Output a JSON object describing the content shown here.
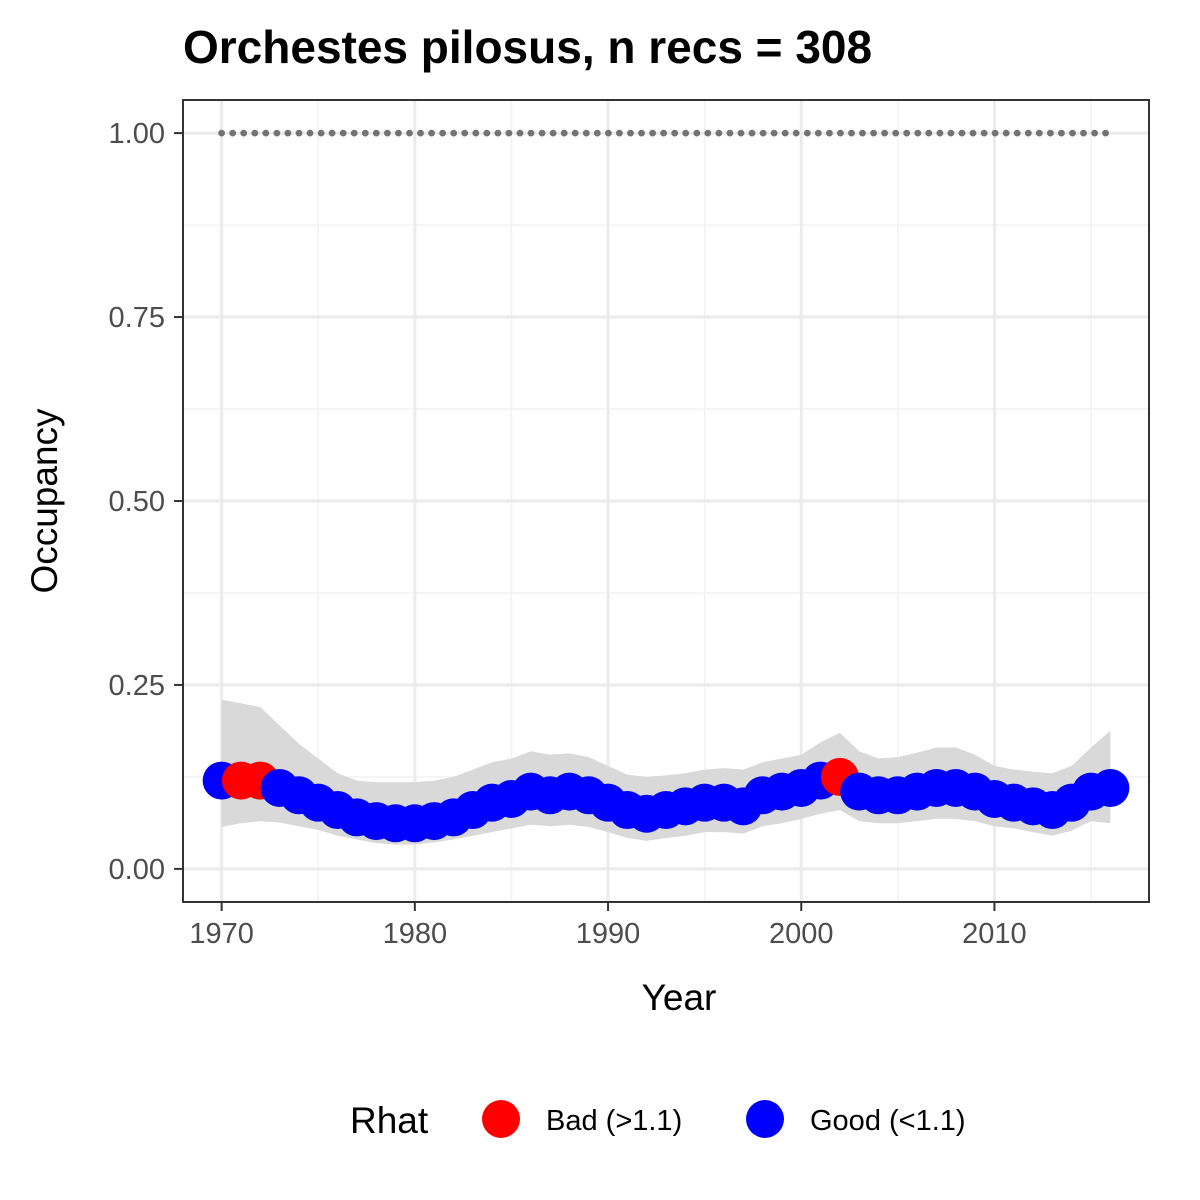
{
  "chart_data": {
    "type": "line",
    "title": "Orchestes pilosus, n recs = 308",
    "xlabel": "Year",
    "ylabel": "Occupancy",
    "xlim": [
      1968,
      2018
    ],
    "ylim": [
      -0.045,
      1.045
    ],
    "x_ticks": [
      1970,
      1980,
      1990,
      2000,
      2010
    ],
    "x_tick_labels": [
      "1970",
      "1980",
      "1990",
      "2000",
      "2010"
    ],
    "y_ticks": [
      0,
      0.25,
      0.5,
      0.75,
      1
    ],
    "y_tick_labels": [
      "0.00",
      "0.25",
      "0.50",
      "0.75",
      "1.00"
    ],
    "grid": true,
    "legend": {
      "title": "Rhat",
      "position": "bottom",
      "items": [
        {
          "label": "Bad (>1.1)",
          "color": "#ff0000"
        },
        {
          "label": "Good (<1.1)",
          "color": "#0000ff"
        }
      ]
    },
    "colors": {
      "bad": "#ff0000",
      "good": "#0000ff",
      "ribbon": "#d9d9d9",
      "reference": "#737373"
    },
    "reference_line": {
      "y": 1.0,
      "style": "dotted"
    },
    "years": [
      1970,
      1971,
      1972,
      1973,
      1974,
      1975,
      1976,
      1977,
      1978,
      1979,
      1980,
      1981,
      1982,
      1983,
      1984,
      1985,
      1986,
      1987,
      1988,
      1989,
      1990,
      1991,
      1992,
      1993,
      1994,
      1995,
      1996,
      1997,
      1998,
      1999,
      2000,
      2001,
      2002,
      2003,
      2004,
      2005,
      2006,
      2007,
      2008,
      2009,
      2010,
      2011,
      2012,
      2013,
      2014,
      2015,
      2016
    ],
    "occupancy": [
      0.12,
      0.12,
      0.12,
      0.11,
      0.1,
      0.09,
      0.08,
      0.07,
      0.065,
      0.062,
      0.062,
      0.065,
      0.07,
      0.08,
      0.09,
      0.095,
      0.105,
      0.1,
      0.105,
      0.1,
      0.09,
      0.08,
      0.075,
      0.08,
      0.085,
      0.09,
      0.09,
      0.085,
      0.1,
      0.105,
      0.11,
      0.12,
      0.125,
      0.105,
      0.1,
      0.1,
      0.105,
      0.11,
      0.11,
      0.105,
      0.095,
      0.09,
      0.085,
      0.08,
      0.09,
      0.105,
      0.11
    ],
    "lower": [
      0.057,
      0.062,
      0.065,
      0.063,
      0.058,
      0.053,
      0.045,
      0.04,
      0.035,
      0.033,
      0.033,
      0.036,
      0.04,
      0.045,
      0.05,
      0.055,
      0.06,
      0.058,
      0.06,
      0.057,
      0.05,
      0.042,
      0.038,
      0.042,
      0.045,
      0.05,
      0.05,
      0.048,
      0.058,
      0.062,
      0.068,
      0.075,
      0.08,
      0.065,
      0.062,
      0.062,
      0.065,
      0.068,
      0.068,
      0.065,
      0.058,
      0.055,
      0.05,
      0.045,
      0.052,
      0.065,
      0.062
    ],
    "upper": [
      0.23,
      0.225,
      0.22,
      0.195,
      0.17,
      0.15,
      0.13,
      0.12,
      0.118,
      0.118,
      0.118,
      0.12,
      0.125,
      0.135,
      0.145,
      0.15,
      0.16,
      0.155,
      0.157,
      0.152,
      0.14,
      0.128,
      0.125,
      0.127,
      0.13,
      0.135,
      0.137,
      0.135,
      0.145,
      0.15,
      0.155,
      0.172,
      0.185,
      0.16,
      0.15,
      0.152,
      0.158,
      0.165,
      0.165,
      0.155,
      0.14,
      0.135,
      0.132,
      0.13,
      0.14,
      0.165,
      0.188
    ],
    "rhat_status": [
      "good",
      "bad",
      "bad",
      "good",
      "good",
      "good",
      "good",
      "good",
      "good",
      "good",
      "good",
      "good",
      "good",
      "good",
      "good",
      "good",
      "good",
      "good",
      "good",
      "good",
      "good",
      "good",
      "good",
      "good",
      "good",
      "good",
      "good",
      "good",
      "good",
      "good",
      "good",
      "good",
      "bad",
      "good",
      "good",
      "good",
      "good",
      "good",
      "good",
      "good",
      "good",
      "good",
      "good",
      "good",
      "good",
      "good",
      "good"
    ]
  }
}
